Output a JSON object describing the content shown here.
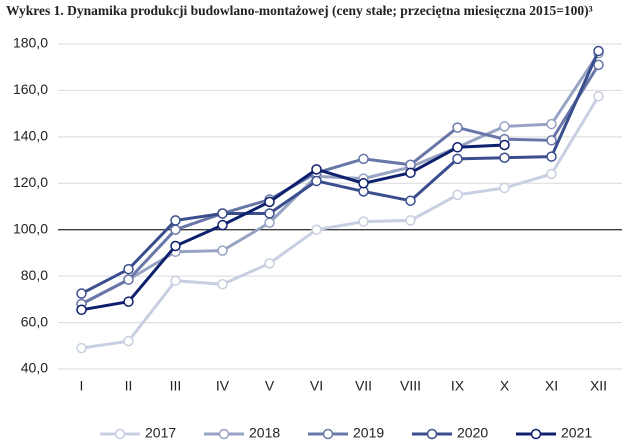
{
  "chart_data": {
    "type": "line",
    "title": "Wykres 1. Dynamika produkcji budowlano-montażowej (ceny stałe; przeciętna miesięczna 2015=100)³",
    "categories": [
      "I",
      "II",
      "III",
      "IV",
      "V",
      "VI",
      "VII",
      "VIII",
      "IX",
      "X",
      "XI",
      "XII"
    ],
    "series": [
      {
        "name": "2017",
        "color": "#c8cfe0",
        "values": [
          49,
          52,
          78,
          76.5,
          85.5,
          100,
          103.5,
          104,
          115,
          118,
          124,
          157.5
        ]
      },
      {
        "name": "2018",
        "color": "#97a3c3",
        "values": [
          68,
          78.5,
          90.5,
          91,
          103,
          123,
          122,
          127,
          135.5,
          144.5,
          145.5,
          176
        ]
      },
      {
        "name": "2019",
        "color": "#6877a8",
        "values": [
          68,
          78.5,
          100,
          107,
          113,
          124.5,
          130.5,
          128,
          144,
          139,
          138.5,
          171
        ]
      },
      {
        "name": "2020",
        "color": "#3a4d8c",
        "values": [
          72.5,
          83,
          104,
          107,
          107,
          121,
          116.5,
          112.5,
          130.5,
          131,
          131.5,
          177
        ]
      },
      {
        "name": "2021",
        "color": "#0d1f6d",
        "values": [
          65.5,
          69,
          93,
          102,
          112,
          126,
          120,
          124.5,
          135.5,
          136.5,
          null,
          null
        ]
      }
    ],
    "ylim": [
      40,
      180
    ],
    "yticks": [
      {
        "value": 40,
        "label": "40,0"
      },
      {
        "value": 60,
        "label": "60,0"
      },
      {
        "value": 80,
        "label": "80,0"
      },
      {
        "value": 100,
        "label": "100,0"
      },
      {
        "value": 120,
        "label": "120,0"
      },
      {
        "value": 140,
        "label": "140,0"
      },
      {
        "value": 160,
        "label": "160,0"
      },
      {
        "value": 180,
        "label": "180,0"
      }
    ],
    "grid": true,
    "reference_line": 100,
    "legend": "bottom"
  }
}
